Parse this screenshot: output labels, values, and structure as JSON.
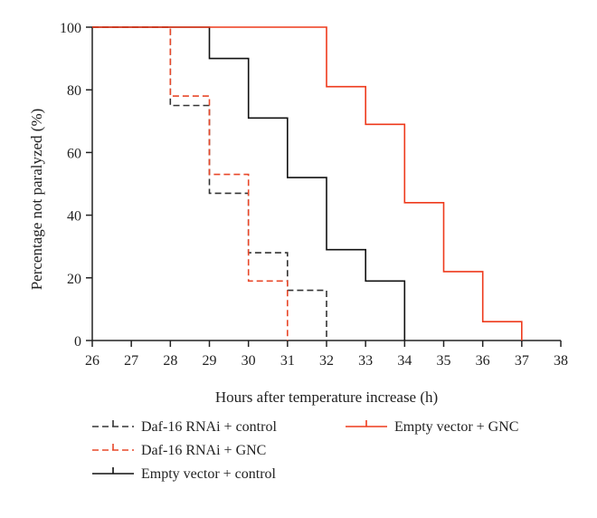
{
  "chart_data": {
    "type": "line",
    "step": true,
    "title": "",
    "xlabel": "Hours after temperature increase (h)",
    "ylabel": "Percentage not paralyzed (%)",
    "xlim": [
      26,
      38
    ],
    "ylim": [
      0,
      100
    ],
    "xticks": [
      26,
      27,
      28,
      29,
      30,
      31,
      32,
      33,
      34,
      35,
      36,
      37,
      38
    ],
    "yticks": [
      0,
      20,
      40,
      60,
      80,
      100
    ],
    "grid": false,
    "legend_position": "bottom",
    "series": [
      {
        "name": "Daf-16 RNAi + control",
        "color": "#333333",
        "dashed": true,
        "points": [
          [
            26,
            100
          ],
          [
            28,
            100
          ],
          [
            28,
            75
          ],
          [
            29,
            75
          ],
          [
            29,
            47
          ],
          [
            30,
            47
          ],
          [
            30,
            28
          ],
          [
            31,
            28
          ],
          [
            31,
            16
          ],
          [
            32,
            16
          ],
          [
            32,
            0
          ]
        ]
      },
      {
        "name": "Daf-16 RNAi + GNC",
        "color": "#e8482a",
        "dashed": true,
        "points": [
          [
            26,
            100
          ],
          [
            28,
            100
          ],
          [
            28,
            78
          ],
          [
            29,
            78
          ],
          [
            29,
            53
          ],
          [
            30,
            53
          ],
          [
            30,
            19
          ],
          [
            31,
            19
          ],
          [
            31,
            0
          ]
        ]
      },
      {
        "name": "Empty vector + control",
        "color": "#111111",
        "dashed": false,
        "points": [
          [
            26,
            100
          ],
          [
            29,
            100
          ],
          [
            29,
            90
          ],
          [
            30,
            90
          ],
          [
            30,
            71
          ],
          [
            31,
            71
          ],
          [
            31,
            52
          ],
          [
            32,
            52
          ],
          [
            32,
            29
          ],
          [
            33,
            29
          ],
          [
            33,
            19
          ],
          [
            34,
            19
          ],
          [
            34,
            0
          ]
        ]
      },
      {
        "name": "Empty vector + GNC",
        "color": "#ee3a1c",
        "dashed": false,
        "points": [
          [
            26,
            100
          ],
          [
            32,
            100
          ],
          [
            32,
            81
          ],
          [
            33,
            81
          ],
          [
            33,
            69
          ],
          [
            34,
            69
          ],
          [
            34,
            44
          ],
          [
            35,
            44
          ],
          [
            35,
            22
          ],
          [
            36,
            22
          ],
          [
            36,
            6
          ],
          [
            37,
            6
          ],
          [
            37,
            0
          ]
        ]
      }
    ]
  }
}
